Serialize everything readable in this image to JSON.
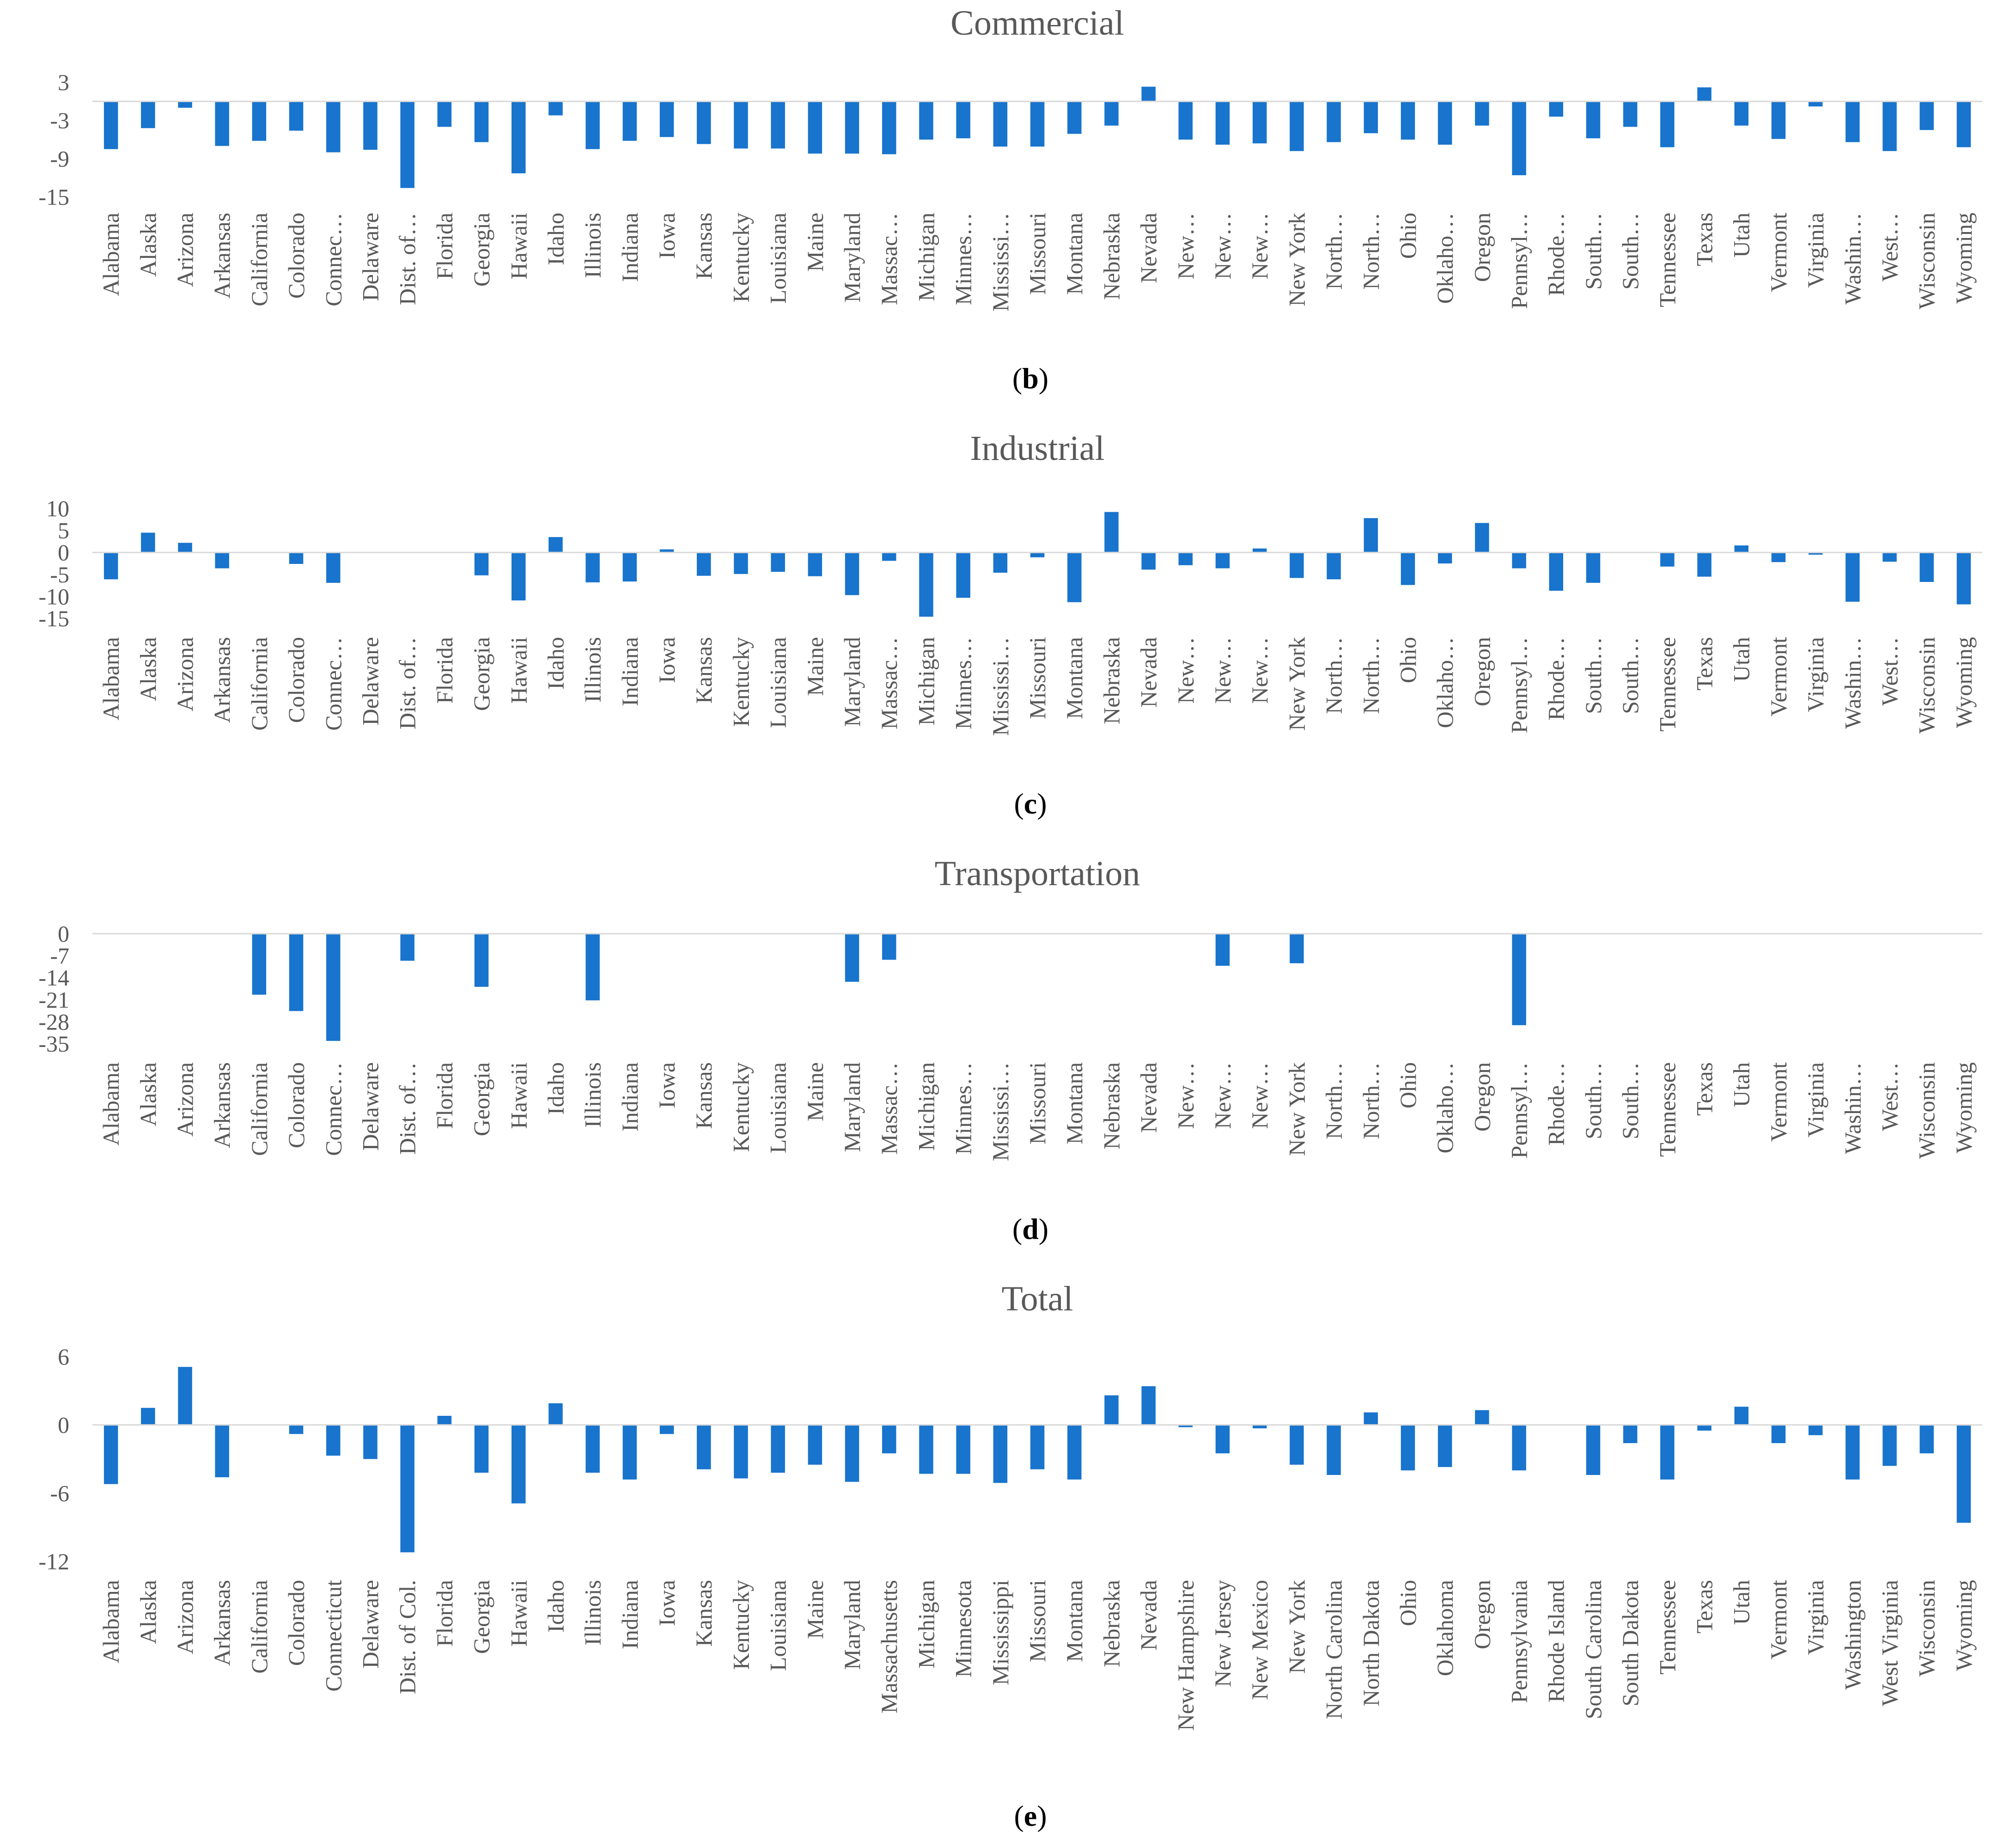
{
  "colors": {
    "bar": "#1874CD",
    "axis": "#D9D9D9",
    "text": "#595959"
  },
  "chart_data": [
    {
      "type": "bar",
      "panel": "b",
      "title": "Commercial",
      "xlabel": "",
      "ylabel": "",
      "ylim": [
        -15,
        3
      ],
      "yticks": [
        "3",
        "-3",
        "-9",
        "-15"
      ],
      "categories": [
        "Alabama",
        "Alaska",
        "Arizona",
        "Arkansas",
        "California",
        "Colorado",
        "Connec…",
        "Delaware",
        "Dist. of…",
        "Florida",
        "Georgia",
        "Hawaii",
        "Idaho",
        "Illinois",
        "Indiana",
        "Iowa",
        "Kansas",
        "Kentucky",
        "Louisiana",
        "Maine",
        "Maryland",
        "Massac…",
        "Michigan",
        "Minnes…",
        "Mississi…",
        "Missouri",
        "Montana",
        "Nebraska",
        "Nevada",
        "New…",
        "New…",
        "New…",
        "New York",
        "North…",
        "North…",
        "Ohio",
        "Oklaho…",
        "Oregon",
        "Pennsyl…",
        "Rhode…",
        "South…",
        "South…",
        "Tennessee",
        "Texas",
        "Utah",
        "Vermont",
        "Virginia",
        "Washin…",
        "West…",
        "Wisconsin",
        "Wyoming"
      ],
      "values": [
        -7.5,
        -4.2,
        -1,
        -7,
        -6.2,
        -4.6,
        -8,
        -7.6,
        -13.6,
        -4,
        -6.4,
        -11.3,
        -2.2,
        -7.5,
        -6.2,
        -5.6,
        -6.7,
        -7.4,
        -7.4,
        -8.2,
        -8.2,
        -8.3,
        -6,
        -5.8,
        -7.1,
        -7.1,
        -5.1,
        -3.8,
        2.3,
        -6,
        -6.8,
        -6.6,
        -7.8,
        -6.4,
        -5,
        -6,
        -6.8,
        -3.8,
        -11.6,
        -2.4,
        -5.8,
        -4,
        -7.2,
        2.2,
        -3.8,
        -5.9,
        -0.8,
        -6.4,
        -7.8,
        -4.5,
        -7.2
      ]
    },
    {
      "type": "bar",
      "panel": "c",
      "title": "Industrial",
      "xlabel": "",
      "ylabel": "",
      "ylim": [
        -15,
        10
      ],
      "yticks": [
        "10",
        "5",
        "0",
        "-5",
        "-10",
        "-15"
      ],
      "categories": [
        "Alabama",
        "Alaska",
        "Arizona",
        "Arkansas",
        "California",
        "Colorado",
        "Connec…",
        "Delaware",
        "Dist. of…",
        "Florida",
        "Georgia",
        "Hawaii",
        "Idaho",
        "Illinois",
        "Indiana",
        "Iowa",
        "Kansas",
        "Kentucky",
        "Louisiana",
        "Maine",
        "Maryland",
        "Massac…",
        "Michigan",
        "Minnes…",
        "Mississi…",
        "Missouri",
        "Montana",
        "Nebraska",
        "Nevada",
        "New…",
        "New…",
        "New…",
        "New York",
        "North…",
        "North…",
        "Ohio",
        "Oklaho…",
        "Oregon",
        "Pennsyl…",
        "Rhode…",
        "South…",
        "South…",
        "Tennessee",
        "Texas",
        "Utah",
        "Vermont",
        "Virginia",
        "Washin…",
        "West…",
        "Wisconsin",
        "Wyoming"
      ],
      "values": [
        -6.1,
        4.5,
        2.2,
        -3.6,
        0,
        -2.6,
        -6.9,
        0,
        0,
        0,
        -5.2,
        -10.9,
        3.5,
        -6.8,
        -6.6,
        0.7,
        -5.3,
        -4.9,
        -4.4,
        -5.4,
        -9.7,
        -1.9,
        -14.6,
        -10.3,
        -4.6,
        -1.1,
        -11.3,
        9.2,
        -3.9,
        -2.9,
        -3.6,
        0.9,
        -5.8,
        -6.1,
        7.8,
        -7.4,
        -2.5,
        6.7,
        -3.6,
        -8.7,
        -6.9,
        0,
        -3.2,
        -5.5,
        1.6,
        -2.2,
        -0.5,
        -11.2,
        -2.1,
        -6.7,
        -11.8
      ]
    },
    {
      "type": "bar",
      "panel": "d",
      "title": "Transportation",
      "xlabel": "",
      "ylabel": "",
      "ylim": [
        -35,
        0
      ],
      "yticks": [
        "0",
        "-7",
        "-14",
        "-21",
        "-28",
        "-35"
      ],
      "categories": [
        "Alabama",
        "Alaska",
        "Arizona",
        "Arkansas",
        "California",
        "Colorado",
        "Connec…",
        "Delaware",
        "Dist. of…",
        "Florida",
        "Georgia",
        "Hawaii",
        "Idaho",
        "Illinois",
        "Indiana",
        "Iowa",
        "Kansas",
        "Kentucky",
        "Louisiana",
        "Maine",
        "Maryland",
        "Massac…",
        "Michigan",
        "Minnes…",
        "Mississi…",
        "Missouri",
        "Montana",
        "Nebraska",
        "Nevada",
        "New…",
        "New…",
        "New…",
        "New York",
        "North…",
        "North…",
        "Ohio",
        "Oklaho…",
        "Oregon",
        "Pennsyl…",
        "Rhode…",
        "South…",
        "South…",
        "Tennessee",
        "Texas",
        "Utah",
        "Vermont",
        "Virginia",
        "Washin…",
        "West…",
        "Wisconsin",
        "Wyoming"
      ],
      "values": [
        0,
        0,
        0,
        0,
        -19.4,
        -24.6,
        -34.1,
        0,
        -8.6,
        0,
        -16.9,
        0,
        0,
        -21.2,
        0,
        0,
        0,
        0,
        0,
        0,
        -15.3,
        -8.3,
        0,
        0,
        0,
        0,
        0,
        0,
        0,
        0,
        -10.2,
        0,
        -9.4,
        0,
        0,
        0,
        0,
        0,
        -29.1,
        0,
        0,
        0,
        0,
        0,
        0,
        0,
        0,
        0,
        0,
        0,
        0
      ]
    },
    {
      "type": "bar",
      "panel": "e",
      "title": "Total",
      "xlabel": "",
      "ylabel": "",
      "ylim": [
        -12,
        6
      ],
      "yticks": [
        "6",
        "0",
        "-6",
        "-12"
      ],
      "categories": [
        "Alabama",
        "Alaska",
        "Arizona",
        "Arkansas",
        "California",
        "Colorado",
        "Connecticut",
        "Delaware",
        "Dist. of Col.",
        "Florida",
        "Georgia",
        "Hawaii",
        "Idaho",
        "Illinois",
        "Indiana",
        "Iowa",
        "Kansas",
        "Kentucky",
        "Louisiana",
        "Maine",
        "Maryland",
        "Massachusetts",
        "Michigan",
        "Minnesota",
        "Mississippi",
        "Missouri",
        "Montana",
        "Nebraska",
        "Nevada",
        "New Hampshire",
        "New Jersey",
        "New Mexico",
        "New York",
        "North Carolina",
        "North Dakota",
        "Ohio",
        "Oklahoma",
        "Oregon",
        "Pennsylvania",
        "Rhode Island",
        "South Carolina",
        "South Dakota",
        "Tennessee",
        "Texas",
        "Utah",
        "Vermont",
        "Virginia",
        "Washington",
        "West Virginia",
        "Wisconsin",
        "Wyoming"
      ],
      "values": [
        -5.2,
        1.5,
        5.1,
        -4.6,
        0,
        -0.8,
        -2.7,
        -3,
        -11.2,
        0.8,
        -4.2,
        -6.9,
        1.9,
        -4.2,
        -4.8,
        -0.8,
        -3.9,
        -4.7,
        -4.2,
        -3.5,
        -5,
        -2.5,
        -4.3,
        -4.3,
        -5.1,
        -3.9,
        -4.8,
        2.6,
        3.4,
        -0.2,
        -2.5,
        -0.3,
        -3.5,
        -4.4,
        1.1,
        -4,
        -3.7,
        1.3,
        -4,
        0,
        -4.4,
        -1.6,
        -4.8,
        -0.5,
        1.6,
        -1.6,
        -0.9,
        -4.8,
        -3.6,
        -2.5,
        -8.6
      ]
    }
  ],
  "captions": [
    {
      "letter": "b"
    },
    {
      "letter": "c"
    },
    {
      "letter": "d"
    },
    {
      "letter": "e"
    }
  ]
}
